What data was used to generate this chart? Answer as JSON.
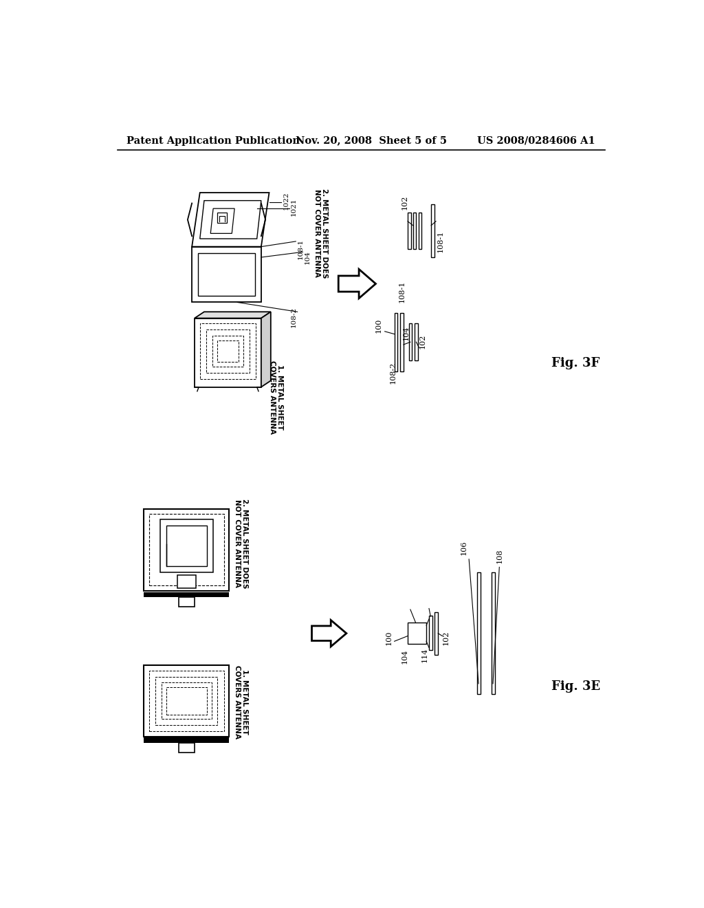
{
  "bg_color": "#ffffff",
  "header_left": "Patent Application Publication",
  "header_center": "Nov. 20, 2008  Sheet 5 of 5",
  "header_right": "US 2008/0284606 A1",
  "fig_label_top": "Fig. 3F",
  "fig_label_bottom": "Fig. 3E"
}
